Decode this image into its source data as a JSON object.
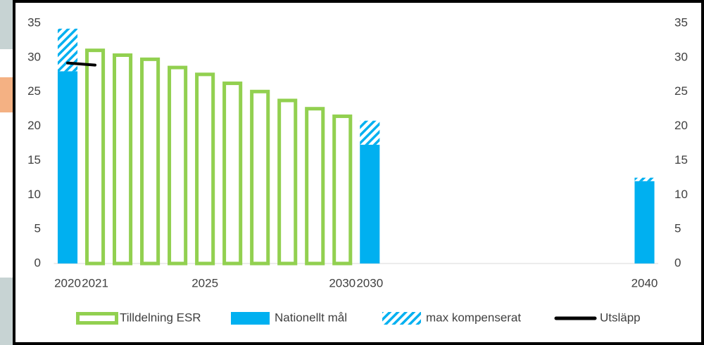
{
  "chart_data": {
    "type": "bar",
    "categories": [
      "2020",
      "2021",
      null,
      null,
      null,
      "2025",
      null,
      null,
      null,
      null,
      "2030",
      "2030",
      null,
      null,
      null,
      null,
      null,
      null,
      null,
      null,
      null,
      "2040"
    ],
    "series": [
      {
        "name": "Tilldelning ESR",
        "color": "#92d050",
        "style": "outline",
        "values": [
          null,
          31.3,
          30.6,
          30.0,
          28.8,
          27.8,
          26.5,
          25.3,
          24.0,
          22.8,
          21.7,
          null,
          null,
          null,
          null,
          null,
          null,
          null,
          null,
          null,
          null,
          null
        ]
      },
      {
        "name": "Nationellt mål",
        "color": "#00b0f0",
        "style": "fill",
        "values": [
          28.0,
          null,
          null,
          null,
          null,
          null,
          null,
          null,
          null,
          null,
          null,
          17.3,
          null,
          null,
          null,
          null,
          null,
          null,
          null,
          null,
          null,
          12.0
        ]
      },
      {
        "name": "max kompenserat",
        "color": "#00b0f0",
        "style": "hatch",
        "stacked_on": 1,
        "values": [
          6.2,
          null,
          null,
          null,
          null,
          null,
          null,
          null,
          null,
          null,
          null,
          3.5,
          null,
          null,
          null,
          null,
          null,
          null,
          null,
          null,
          null,
          0.5
        ]
      },
      {
        "name": "Utsläpp",
        "color": "#000000",
        "style": "line",
        "values": [
          29.2,
          28.9,
          null,
          null,
          null,
          null,
          null,
          null,
          null,
          null,
          null,
          null,
          null,
          null,
          null,
          null,
          null,
          null,
          null,
          null,
          null,
          null
        ]
      }
    ],
    "ylim": [
      0,
      35
    ],
    "yticks": [
      0,
      5,
      10,
      15,
      20,
      25,
      30,
      35
    ],
    "y2lim": [
      0,
      35
    ],
    "y2ticks": [
      0,
      5,
      10,
      15,
      20,
      25,
      30,
      35
    ],
    "grid": false,
    "legend": "bottom"
  }
}
